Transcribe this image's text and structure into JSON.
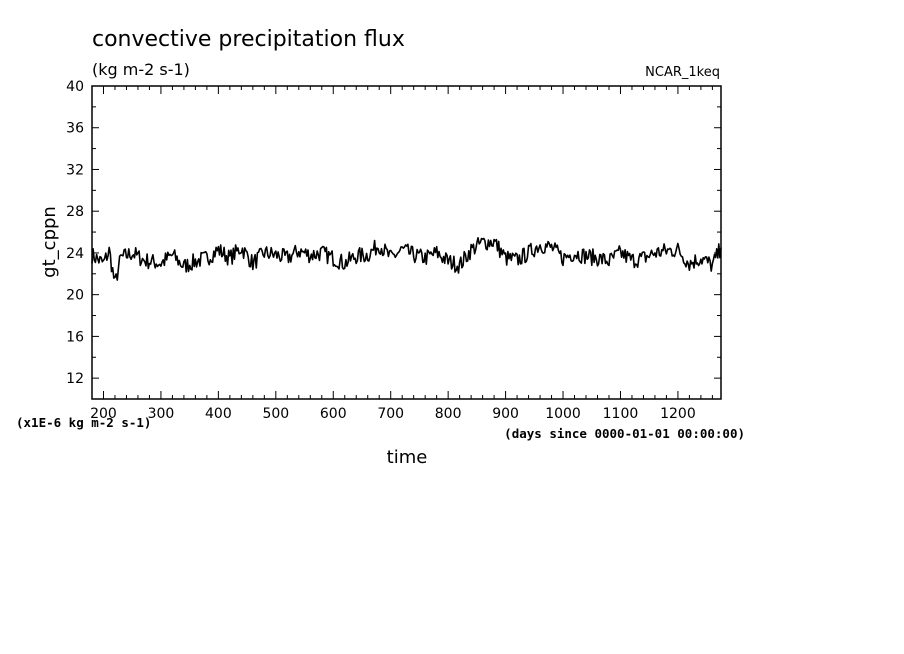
{
  "chart_data": {
    "type": "line",
    "title": "convective precipitation flux",
    "units": "(kg m-2 s-1)",
    "dataset_label": "NCAR_1keq",
    "ylabel": "gt_cppn",
    "xlabel": "time",
    "x_units": "(days since 0000-01-01 00:00:00)",
    "y_scale_note": "(x1E-6 kg m-2 s-1)",
    "xlim": [
      180,
      1275
    ],
    "ylim": [
      10,
      40
    ],
    "x_ticks": [
      200,
      300,
      400,
      500,
      600,
      700,
      800,
      900,
      1000,
      1100,
      1200
    ],
    "y_ticks": [
      12,
      16,
      20,
      24,
      28,
      32,
      36,
      40
    ],
    "series": [
      {
        "name": "gt_cppn",
        "x": [
          180,
          200,
          210,
          220,
          230,
          250,
          270,
          300,
          320,
          340,
          360,
          380,
          400,
          420,
          440,
          460,
          480,
          500,
          520,
          540,
          560,
          580,
          600,
          620,
          640,
          660,
          680,
          700,
          720,
          740,
          760,
          780,
          800,
          820,
          840,
          860,
          880,
          900,
          920,
          940,
          960,
          980,
          1000,
          1020,
          1040,
          1060,
          1080,
          1100,
          1120,
          1140,
          1160,
          1180,
          1200,
          1220,
          1240,
          1260,
          1275
        ],
        "y": [
          23.8,
          23.0,
          24.2,
          21.0,
          23.5,
          24.0,
          23.3,
          23.0,
          23.8,
          22.7,
          23.2,
          23.5,
          24.3,
          23.5,
          24.5,
          23.0,
          24.0,
          23.8,
          23.5,
          24.2,
          23.8,
          24.0,
          23.5,
          23.0,
          23.7,
          23.8,
          24.8,
          23.5,
          24.3,
          23.8,
          23.5,
          24.0,
          23.2,
          22.8,
          24.3,
          25.0,
          25.1,
          23.5,
          23.3,
          24.0,
          24.8,
          24.5,
          23.5,
          24.0,
          23.7,
          23.5,
          23.2,
          24.0,
          23.3,
          23.5,
          24.0,
          24.2,
          24.3,
          23.0,
          23.5,
          22.8,
          24.5
        ]
      }
    ]
  }
}
